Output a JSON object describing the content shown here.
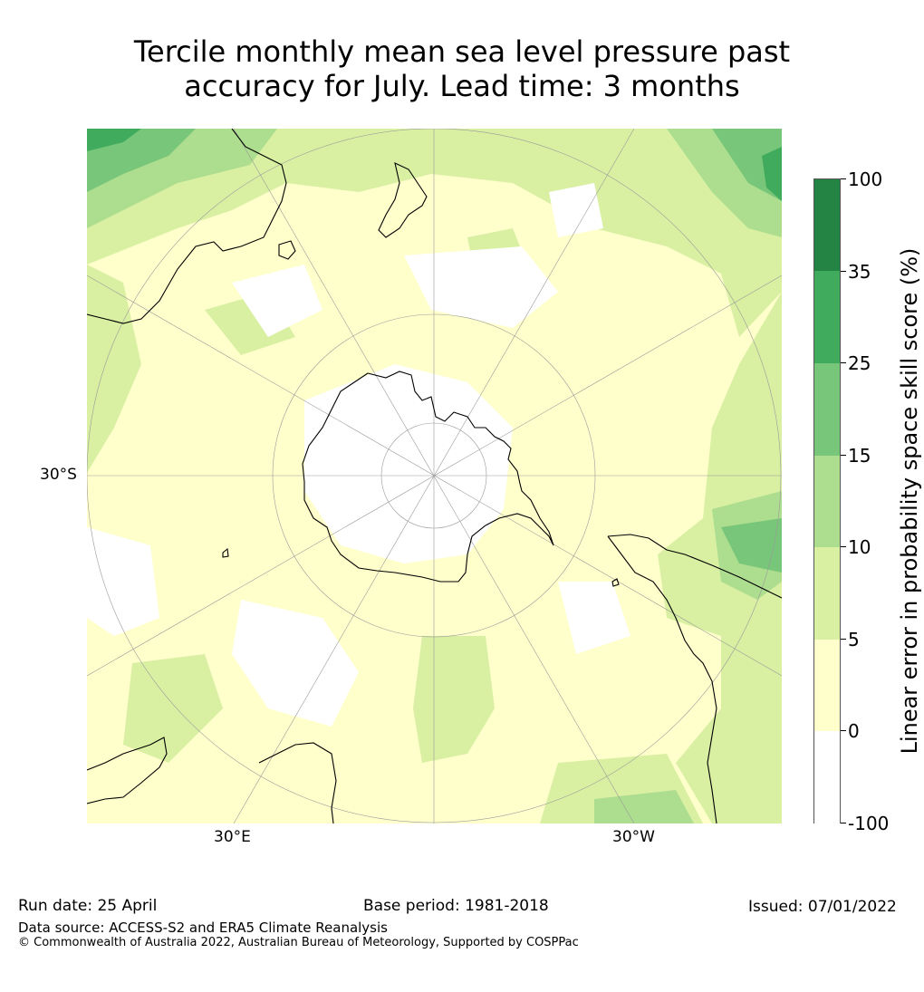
{
  "title_line1": "Tercile monthly mean sea level pressure past",
  "title_line2": "accuracy for July. Lead time: 3 months",
  "axis_labels": {
    "left": "30°S",
    "bottom_left": "30°E",
    "bottom_right": "30°W"
  },
  "colorbar": {
    "title": "Linear error in probability space skill score (%)",
    "ticks": [
      "-100",
      "0",
      "5",
      "10",
      "15",
      "25",
      "35",
      "100"
    ],
    "colors": [
      "#ffffff",
      "#ffffcc",
      "#d9f0a3",
      "#addd8e",
      "#78c679",
      "#41ab5d",
      "#238443"
    ]
  },
  "map_colors": {
    "ocean_base": "#ffffcc",
    "white": "#ffffff",
    "light_green": "#d9f0a3",
    "mid_green": "#addd8e",
    "green": "#78c679",
    "dark_green": "#41ab5d",
    "coast": "#000000",
    "graticule": "#9a9a9a"
  },
  "footer": {
    "run_date": "Run date: 25 April",
    "base_period": "Base period: 1981-2018",
    "issued": "Issued: 07/01/2022",
    "data_source": "Data source: ACCESS-S2 and ERA5 Climate Reanalysis",
    "copyright": "© Commonwealth of Australia 2022, Australian Bureau of Meteorology, Supported by COSPPac"
  }
}
